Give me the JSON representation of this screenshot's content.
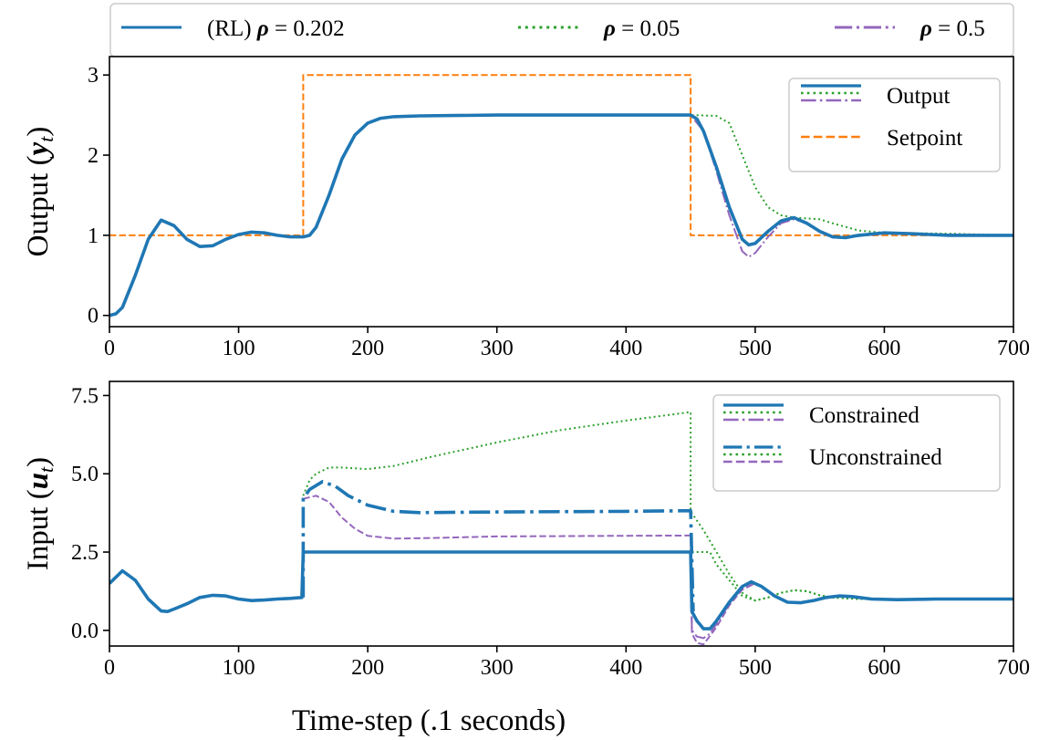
{
  "colors": {
    "blue": "#1f77b4",
    "green": "#2ca02c",
    "purple": "#9467bd",
    "orange": "#ff7f0e"
  },
  "top_legend": [
    {
      "label": "(RL) ρ = 0.202",
      "color": "#1f77b4",
      "style": "solid"
    },
    {
      "label": "ρ = 0.05",
      "color": "#2ca02c",
      "style": "dotted"
    },
    {
      "label": "ρ = 0.5",
      "color": "#9467bd",
      "style": "dashdot"
    }
  ],
  "xlabel": "Time-step (.1 seconds)",
  "chart_data": [
    {
      "type": "line",
      "ylabel": "Output (y_t)",
      "xlim": [
        0,
        700
      ],
      "ylim": [
        -0.14,
        3.23
      ],
      "xticks": [
        0,
        100,
        200,
        300,
        400,
        500,
        600,
        700
      ],
      "yticks": [
        0,
        1,
        2,
        3
      ],
      "grid": false,
      "legend_position": "top-right",
      "legend": [
        {
          "label": "Output",
          "styles": [
            [
              "#1f77b4",
              "solid"
            ],
            [
              "#2ca02c",
              "dotted"
            ],
            [
              "#9467bd",
              "dashdot"
            ]
          ]
        },
        {
          "label": "Setpoint",
          "styles": [
            [
              "#ff7f0e",
              "dashed"
            ]
          ]
        }
      ],
      "series": [
        {
          "key": "setpoint",
          "color": "#ff7f0e",
          "style": "dashed",
          "x": [
            0,
            150,
            150,
            450,
            450,
            700
          ],
          "y": [
            1,
            1,
            3,
            3,
            1,
            1
          ]
        },
        {
          "key": "rho_0.05",
          "color": "#2ca02c",
          "style": "dotted",
          "x": [
            440,
            450,
            470,
            480,
            490,
            500,
            510,
            520,
            530,
            550,
            560,
            580,
            600,
            650,
            700
          ],
          "y": [
            2.5,
            2.5,
            2.49,
            2.4,
            2.0,
            1.6,
            1.35,
            1.25,
            1.22,
            1.2,
            1.15,
            1.06,
            1.03,
            1.02,
            1.0
          ]
        },
        {
          "key": "rho_0.5",
          "color": "#9467bd",
          "style": "dashdot",
          "x": [
            440,
            450,
            460,
            470,
            480,
            490,
            495,
            500,
            510,
            520,
            530,
            540,
            550,
            560,
            580,
            600,
            700
          ],
          "y": [
            2.5,
            2.5,
            2.3,
            1.8,
            1.25,
            0.8,
            0.73,
            0.78,
            0.98,
            1.15,
            1.2,
            1.15,
            1.04,
            0.97,
            0.99,
            1.02,
            1.0
          ]
        },
        {
          "key": "rl_rho_0.202",
          "color": "#1f77b4",
          "style": "solid",
          "x": [
            0,
            5,
            10,
            20,
            30,
            40,
            50,
            60,
            70,
            80,
            90,
            100,
            110,
            120,
            130,
            140,
            150,
            155,
            160,
            170,
            180,
            190,
            200,
            210,
            220,
            240,
            300,
            450,
            455,
            460,
            470,
            480,
            490,
            495,
            500,
            510,
            520,
            530,
            540,
            550,
            560,
            570,
            580,
            600,
            620,
            650,
            700
          ],
          "y": [
            0,
            0.02,
            0.1,
            0.5,
            0.95,
            1.19,
            1.12,
            0.95,
            0.86,
            0.87,
            0.95,
            1.01,
            1.04,
            1.03,
            1.0,
            0.98,
            0.98,
            1.0,
            1.1,
            1.5,
            1.95,
            2.25,
            2.4,
            2.46,
            2.48,
            2.49,
            2.5,
            2.5,
            2.45,
            2.3,
            1.85,
            1.35,
            0.95,
            0.88,
            0.9,
            1.05,
            1.18,
            1.22,
            1.15,
            1.05,
            0.98,
            0.97,
            1.0,
            1.03,
            1.02,
            1.0,
            1.0
          ]
        }
      ]
    },
    {
      "type": "line",
      "ylabel": "Input (u_t)",
      "xlim": [
        0,
        700
      ],
      "ylim": [
        -0.5,
        7.95
      ],
      "xticks": [
        0,
        100,
        200,
        300,
        400,
        500,
        600,
        700
      ],
      "yticks": [
        0.0,
        2.5,
        5.0,
        7.5
      ],
      "ytick_labels": [
        "0.0",
        "2.5",
        "5.0",
        "7.5"
      ],
      "grid": false,
      "legend_position": "top-right",
      "legend": [
        {
          "label": "Constrained",
          "styles": [
            [
              "#1f77b4",
              "solid"
            ],
            [
              "#2ca02c",
              "dotted"
            ],
            [
              "#9467bd",
              "dashdot"
            ]
          ]
        },
        {
          "label": "Unconstrained",
          "styles": [
            [
              "#1f77b4",
              "dashdot"
            ],
            [
              "#2ca02c",
              "dotted"
            ],
            [
              "#9467bd",
              "dashed"
            ]
          ]
        }
      ],
      "series": [
        {
          "key": "unconstrained_rho_0.05",
          "color": "#2ca02c",
          "style": "dotted",
          "x": [
            150,
            155,
            160,
            170,
            180,
            200,
            220,
            250,
            300,
            350,
            400,
            450,
            450,
            460,
            470,
            480,
            490,
            500,
            510,
            520,
            530,
            540,
            550,
            560,
            580,
            700
          ],
          "y": [
            4.3,
            4.8,
            5.0,
            5.2,
            5.2,
            5.15,
            5.25,
            5.55,
            6.0,
            6.4,
            6.7,
            6.97,
            3.8,
            3.2,
            2.5,
            1.8,
            1.2,
            0.95,
            1.05,
            1.2,
            1.28,
            1.25,
            1.12,
            1.05,
            1.0,
            1.0
          ]
        },
        {
          "key": "constrained_rho_0.05",
          "color": "#2ca02c",
          "style": "dotted",
          "x": [
            440,
            450,
            465,
            470,
            480,
            490,
            500,
            510,
            520,
            530,
            540,
            550,
            560,
            580,
            700
          ],
          "y": [
            2.5,
            2.5,
            2.5,
            2.1,
            1.6,
            1.1,
            0.95,
            1.05,
            1.2,
            1.28,
            1.25,
            1.12,
            1.05,
            1.0,
            1.0
          ]
        },
        {
          "key": "unconstrained_rho_0.5",
          "color": "#9467bd",
          "style": "dashed",
          "x": [
            150,
            160,
            170,
            180,
            190,
            200,
            220,
            250,
            300,
            400,
            450,
            451,
            455,
            460,
            470,
            480,
            490,
            500
          ],
          "y": [
            4.2,
            4.3,
            4.1,
            3.6,
            3.25,
            3.02,
            2.93,
            2.95,
            3.0,
            3.02,
            3.03,
            -0.1,
            -0.4,
            -0.45,
            0.1,
            0.8,
            1.3,
            1.5
          ]
        },
        {
          "key": "constrained_rho_0.5",
          "color": "#9467bd",
          "style": "dashdot",
          "x": [
            440,
            450,
            451,
            455,
            460,
            465,
            470,
            480,
            490,
            500
          ],
          "y": [
            2.5,
            2.5,
            0.0,
            -0.2,
            -0.25,
            -0.1,
            0.2,
            0.85,
            1.35,
            1.5
          ]
        },
        {
          "key": "unconstrained_rl",
          "color": "#1f77b4",
          "style": "dashdot",
          "x": [
            150,
            150,
            155,
            165,
            175,
            185,
            200,
            220,
            240,
            300,
            400,
            450,
            452
          ],
          "y": [
            1.05,
            4.2,
            4.5,
            4.75,
            4.6,
            4.3,
            4.0,
            3.8,
            3.76,
            3.78,
            3.8,
            3.82,
            0.6
          ]
        },
        {
          "key": "constrained_rl",
          "color": "#1f77b4",
          "style": "solid",
          "x": [
            0,
            10,
            20,
            30,
            40,
            45,
            50,
            60,
            70,
            80,
            90,
            100,
            110,
            120,
            130,
            140,
            149,
            150,
            450,
            451,
            455,
            460,
            465,
            470,
            480,
            490,
            497,
            505,
            515,
            525,
            535,
            545,
            555,
            565,
            575,
            590,
            610,
            640,
            670,
            700
          ],
          "y": [
            1.5,
            1.9,
            1.6,
            1.0,
            0.62,
            0.6,
            0.68,
            0.85,
            1.05,
            1.12,
            1.1,
            1.0,
            0.95,
            0.97,
            1.0,
            1.02,
            1.05,
            2.5,
            2.5,
            0.6,
            0.3,
            0.05,
            0.05,
            0.3,
            0.9,
            1.4,
            1.55,
            1.4,
            1.1,
            0.9,
            0.88,
            0.95,
            1.05,
            1.1,
            1.08,
            1.0,
            0.98,
            1.0,
            1.0,
            1.0
          ]
        }
      ]
    }
  ]
}
